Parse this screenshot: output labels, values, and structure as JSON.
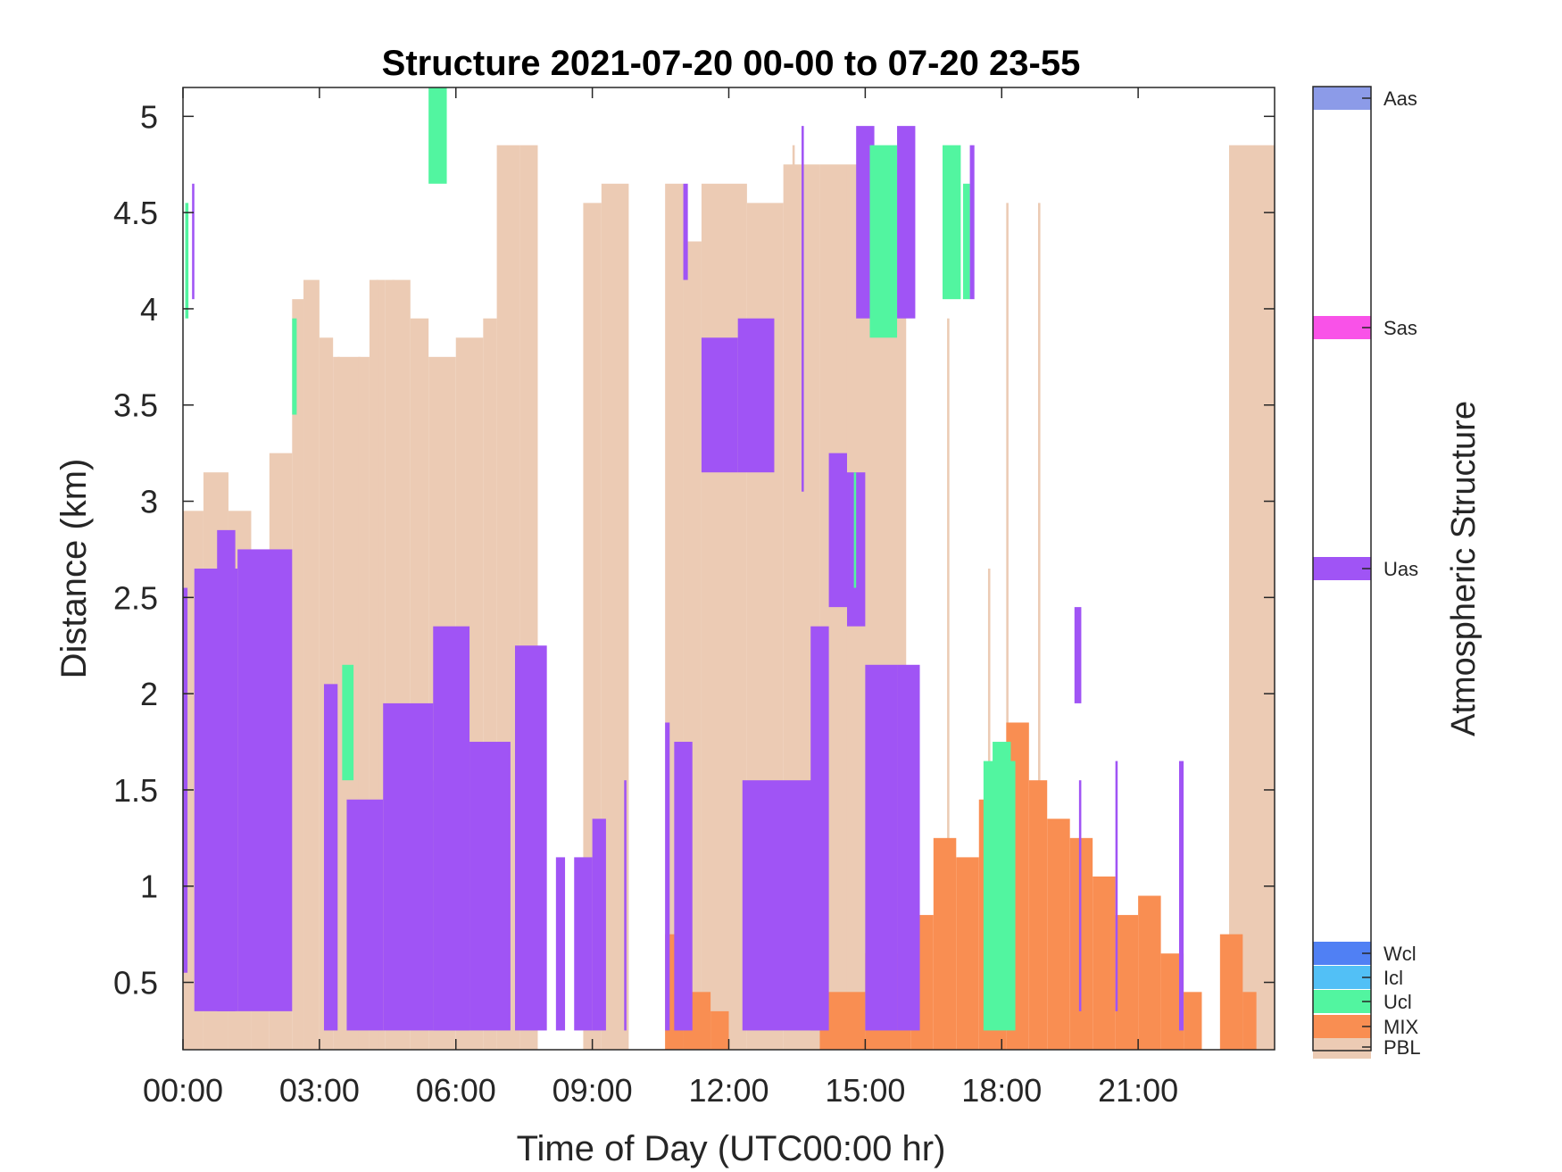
{
  "chart_data": {
    "type": "heatmap",
    "title": "Structure 2021-07-20 00-00 to 07-20 23-55",
    "xlabel": "Time of Day (UTC00:00 hr)",
    "ylabel": "Distance (km)",
    "xlim": [
      0,
      24
    ],
    "ylim": [
      0.15,
      5.15
    ],
    "xticks": [
      0,
      3,
      6,
      9,
      12,
      15,
      18,
      21
    ],
    "xtick_labels": [
      "00:00",
      "03:00",
      "06:00",
      "09:00",
      "12:00",
      "15:00",
      "18:00",
      "21:00"
    ],
    "yticks": [
      0.5,
      1,
      1.5,
      2,
      2.5,
      3,
      3.5,
      4,
      4.5,
      5
    ],
    "ytick_labels": [
      "0.5",
      "1",
      "1.5",
      "2",
      "2.5",
      "3",
      "3.5",
      "4",
      "4.5",
      "5"
    ],
    "grid": false,
    "colorbar": {
      "title": "Atmospheric Structure",
      "classes": [
        {
          "label": "PBL",
          "color": "#ECCBB4"
        },
        {
          "label": "MIX",
          "color": "#F98E52"
        },
        {
          "label": "Ucl",
          "color": "#52F5A0"
        },
        {
          "label": "Icl",
          "color": "#52C0F6"
        },
        {
          "label": "Wcl",
          "color": "#5080F4"
        },
        {
          "label": "Uas",
          "color": "#A054F5"
        },
        {
          "label": "Sas",
          "color": "#F952E8"
        },
        {
          "label": "Aas",
          "color": "#8C9BE8"
        }
      ]
    },
    "pbl_columns": [
      [
        0.0,
        0.45,
        2.95
      ],
      [
        0.45,
        1.0,
        3.15
      ],
      [
        1.0,
        1.5,
        2.95
      ],
      [
        1.5,
        1.9,
        2.75
      ],
      [
        1.9,
        2.4,
        3.25
      ],
      [
        2.4,
        2.65,
        4.05
      ],
      [
        2.65,
        3.0,
        4.15
      ],
      [
        3.0,
        3.3,
        3.85
      ],
      [
        3.3,
        4.1,
        3.75
      ],
      [
        4.1,
        4.45,
        4.15
      ],
      [
        4.45,
        5.0,
        4.15
      ],
      [
        5.0,
        5.4,
        3.95
      ],
      [
        5.4,
        6.0,
        3.75
      ],
      [
        6.0,
        6.6,
        3.85
      ],
      [
        6.6,
        6.9,
        3.95
      ],
      [
        6.9,
        7.4,
        4.85
      ],
      [
        7.4,
        7.8,
        4.85
      ],
      [
        7.8,
        8.8,
        0.15
      ],
      [
        8.8,
        9.2,
        4.55
      ],
      [
        9.2,
        9.8,
        4.65
      ],
      [
        9.8,
        10.6,
        0.15
      ],
      [
        10.6,
        11.0,
        4.65
      ],
      [
        11.0,
        11.4,
        4.35
      ],
      [
        11.4,
        12.4,
        4.65
      ],
      [
        12.4,
        13.2,
        4.55
      ],
      [
        13.2,
        14.0,
        4.75
      ],
      [
        14.0,
        14.6,
        4.75
      ],
      [
        14.6,
        15.9,
        4.75
      ],
      [
        15.9,
        24.0,
        0.15
      ],
      [
        23.0,
        24.0,
        4.85
      ]
    ],
    "mix_columns": [
      [
        10.6,
        11.0,
        0.75
      ],
      [
        11.0,
        11.6,
        0.45
      ],
      [
        11.6,
        12.0,
        0.35
      ],
      [
        14.0,
        15.0,
        0.45
      ],
      [
        15.0,
        16.0,
        0.65
      ],
      [
        16.0,
        16.5,
        0.85
      ],
      [
        16.5,
        17.0,
        1.25
      ],
      [
        17.0,
        17.5,
        1.15
      ],
      [
        17.5,
        18.1,
        1.45
      ],
      [
        18.1,
        18.6,
        1.85
      ],
      [
        18.6,
        19.0,
        1.55
      ],
      [
        19.0,
        19.5,
        1.35
      ],
      [
        19.5,
        20.0,
        1.25
      ],
      [
        20.0,
        20.5,
        1.05
      ],
      [
        20.5,
        21.0,
        0.85
      ],
      [
        21.0,
        21.5,
        0.95
      ],
      [
        21.5,
        22.0,
        0.65
      ],
      [
        22.0,
        22.4,
        0.45
      ],
      [
        22.8,
        23.3,
        0.75
      ],
      [
        23.3,
        23.6,
        0.45
      ]
    ],
    "uas_blocks": [
      [
        0.0,
        0.1,
        0.55,
        2.55
      ],
      [
        0.2,
        0.25,
        4.05,
        4.65
      ],
      [
        0.25,
        1.2,
        0.35,
        2.65
      ],
      [
        0.75,
        1.15,
        0.35,
        2.85
      ],
      [
        1.2,
        2.4,
        0.35,
        2.75
      ],
      [
        3.1,
        3.4,
        0.25,
        2.05
      ],
      [
        3.6,
        4.4,
        0.25,
        1.45
      ],
      [
        4.4,
        5.5,
        0.25,
        1.95
      ],
      [
        5.5,
        6.3,
        0.25,
        1.55
      ],
      [
        5.5,
        6.3,
        0.25,
        2.35
      ],
      [
        6.3,
        7.2,
        0.25,
        1.75
      ],
      [
        7.3,
        8.0,
        0.25,
        2.25
      ],
      [
        8.2,
        8.4,
        0.25,
        1.15
      ],
      [
        8.6,
        9.0,
        0.25,
        1.15
      ],
      [
        9.0,
        9.3,
        0.25,
        1.35
      ],
      [
        9.7,
        9.75,
        0.25,
        1.55
      ],
      [
        10.6,
        10.7,
        0.25,
        1.85
      ],
      [
        10.8,
        11.2,
        0.25,
        1.75
      ],
      [
        11.0,
        11.1,
        4.15,
        4.65
      ],
      [
        11.4,
        12.2,
        3.15,
        3.85
      ],
      [
        12.2,
        13.0,
        3.15,
        3.95
      ],
      [
        12.3,
        14.0,
        0.25,
        1.55
      ],
      [
        13.6,
        13.65,
        3.05,
        4.95
      ],
      [
        13.8,
        14.2,
        0.25,
        2.35
      ],
      [
        14.2,
        14.6,
        2.45,
        3.25
      ],
      [
        14.6,
        15.0,
        2.35,
        3.15
      ],
      [
        14.8,
        15.2,
        3.95,
        4.95
      ],
      [
        15.0,
        15.7,
        0.25,
        2.15
      ],
      [
        15.7,
        16.2,
        0.25,
        2.15
      ],
      [
        15.7,
        16.1,
        3.95,
        4.95
      ],
      [
        17.3,
        17.4,
        4.05,
        4.85
      ],
      [
        19.6,
        19.75,
        1.95,
        2.45
      ],
      [
        19.7,
        19.75,
        0.35,
        1.55
      ],
      [
        20.5,
        20.55,
        0.35,
        1.65
      ],
      [
        21.9,
        22.0,
        0.25,
        1.65
      ]
    ],
    "ucl_blocks": [
      [
        0.05,
        0.12,
        3.95,
        4.55
      ],
      [
        2.4,
        2.5,
        3.45,
        3.95
      ],
      [
        3.5,
        3.75,
        1.55,
        2.15
      ],
      [
        5.4,
        5.8,
        4.65,
        5.15
      ],
      [
        15.1,
        15.7,
        3.85,
        4.85
      ],
      [
        16.7,
        17.1,
        4.05,
        4.85
      ],
      [
        17.15,
        17.3,
        4.05,
        4.65
      ],
      [
        14.75,
        14.8,
        2.55,
        3.15
      ],
      [
        17.6,
        18.3,
        0.25,
        1.65
      ],
      [
        17.8,
        18.2,
        1.45,
        1.75
      ]
    ],
    "sparse_pbl_columns": [
      [
        3.4,
        3.45,
        0.15,
        3.75
      ],
      [
        3.85,
        3.9,
        0.15,
        3.75
      ],
      [
        4.25,
        4.3,
        0.15,
        4.15
      ],
      [
        4.6,
        4.65,
        0.15,
        4.15
      ],
      [
        13.4,
        13.45,
        0.15,
        4.85
      ],
      [
        16.8,
        16.85,
        0.15,
        3.95
      ],
      [
        17.7,
        17.75,
        0.15,
        2.65
      ],
      [
        18.1,
        18.15,
        0.15,
        4.55
      ],
      [
        18.8,
        18.85,
        0.15,
        4.55
      ]
    ]
  }
}
